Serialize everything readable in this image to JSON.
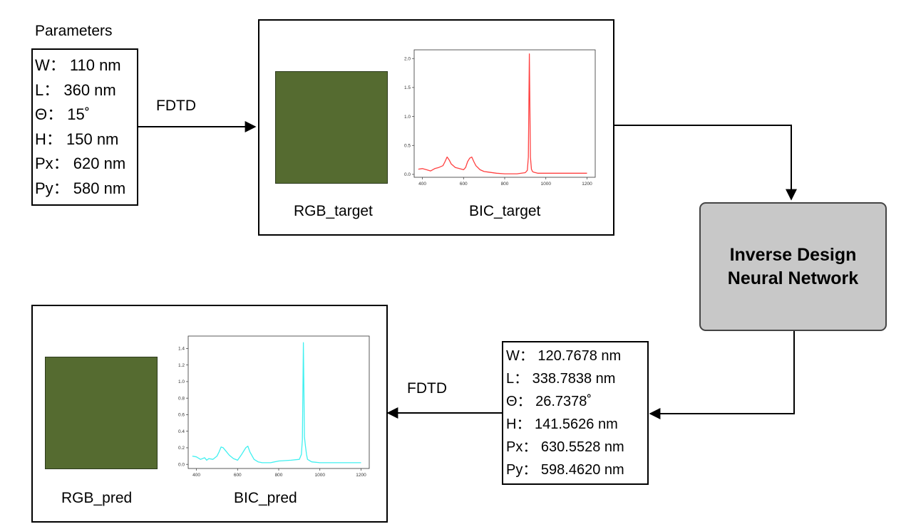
{
  "params_label": "Parameters",
  "target_params": [
    "W：  110 nm",
    "L：  360 nm",
    "Θ：  15˚",
    "H：  150 nm",
    "Px：  620 nm",
    "Py：  580 nm"
  ],
  "pred_params": [
    "W：  120.7678 nm",
    "L：  338.7838 nm",
    "Θ：  26.7378˚",
    "H：  141.5626 nm",
    "Px：  630.5528 nm",
    "Py：  598.4620 nm"
  ],
  "edges": {
    "fdtd_top": "FDTD",
    "fdtd_bottom": "FDTD"
  },
  "network": {
    "line1": "Inverse Design",
    "line2": "Neural Network"
  },
  "target_panel": {
    "rgb_label": "RGB_target",
    "bic_label": "BIC_target",
    "swatch_color": "#556b30"
  },
  "pred_panel": {
    "rgb_label": "RGB_pred",
    "bic_label": "BIC_pred",
    "swatch_color": "#556b30"
  },
  "chart_data": [
    {
      "type": "line",
      "name": "BIC_target",
      "color": "#ff4040",
      "x_ticks": [
        400,
        600,
        800,
        1000,
        1200
      ],
      "y_ticks": [
        "0.0",
        "0.5",
        "1.0",
        "1.5",
        "2.0"
      ],
      "xlim": [
        360,
        1240
      ],
      "ylim": [
        -0.05,
        2.15
      ],
      "x": [
        380,
        400,
        420,
        440,
        460,
        480,
        500,
        510,
        520,
        530,
        540,
        560,
        580,
        600,
        610,
        620,
        630,
        640,
        650,
        660,
        680,
        700,
        720,
        760,
        800,
        860,
        900,
        910,
        915,
        920,
        925,
        930,
        935,
        940,
        960,
        1000,
        1100,
        1200
      ],
      "y": [
        0.09,
        0.1,
        0.08,
        0.06,
        0.1,
        0.12,
        0.15,
        0.22,
        0.3,
        0.25,
        0.18,
        0.12,
        0.1,
        0.08,
        0.12,
        0.22,
        0.28,
        0.3,
        0.22,
        0.15,
        0.08,
        0.05,
        0.04,
        0.02,
        0.01,
        0.01,
        0.03,
        0.07,
        0.3,
        2.08,
        0.3,
        0.09,
        0.05,
        0.04,
        0.02,
        0.02,
        0.02,
        0.02
      ]
    },
    {
      "type": "line",
      "name": "BIC_pred",
      "color": "#40f0f0",
      "x_ticks": [
        400,
        600,
        800,
        1000,
        1200
      ],
      "y_ticks": [
        "0.0",
        "0.2",
        "0.4",
        "0.6",
        "0.8",
        "1.0",
        "1.2",
        "1.4"
      ],
      "xlim": [
        360,
        1240
      ],
      "ylim": [
        -0.05,
        1.55
      ],
      "x": [
        380,
        400,
        420,
        440,
        450,
        460,
        480,
        500,
        510,
        520,
        530,
        540,
        560,
        580,
        600,
        620,
        640,
        650,
        660,
        680,
        700,
        720,
        760,
        800,
        860,
        900,
        910,
        915,
        920,
        925,
        930,
        935,
        940,
        960,
        1000,
        1100,
        1200
      ],
      "y": [
        0.1,
        0.09,
        0.06,
        0.08,
        0.05,
        0.07,
        0.06,
        0.1,
        0.15,
        0.21,
        0.2,
        0.17,
        0.11,
        0.07,
        0.05,
        0.12,
        0.2,
        0.22,
        0.15,
        0.06,
        0.03,
        0.02,
        0.02,
        0.04,
        0.05,
        0.06,
        0.12,
        0.3,
        1.47,
        0.33,
        0.22,
        0.12,
        0.06,
        0.03,
        0.02,
        0.02,
        0.02
      ]
    }
  ]
}
